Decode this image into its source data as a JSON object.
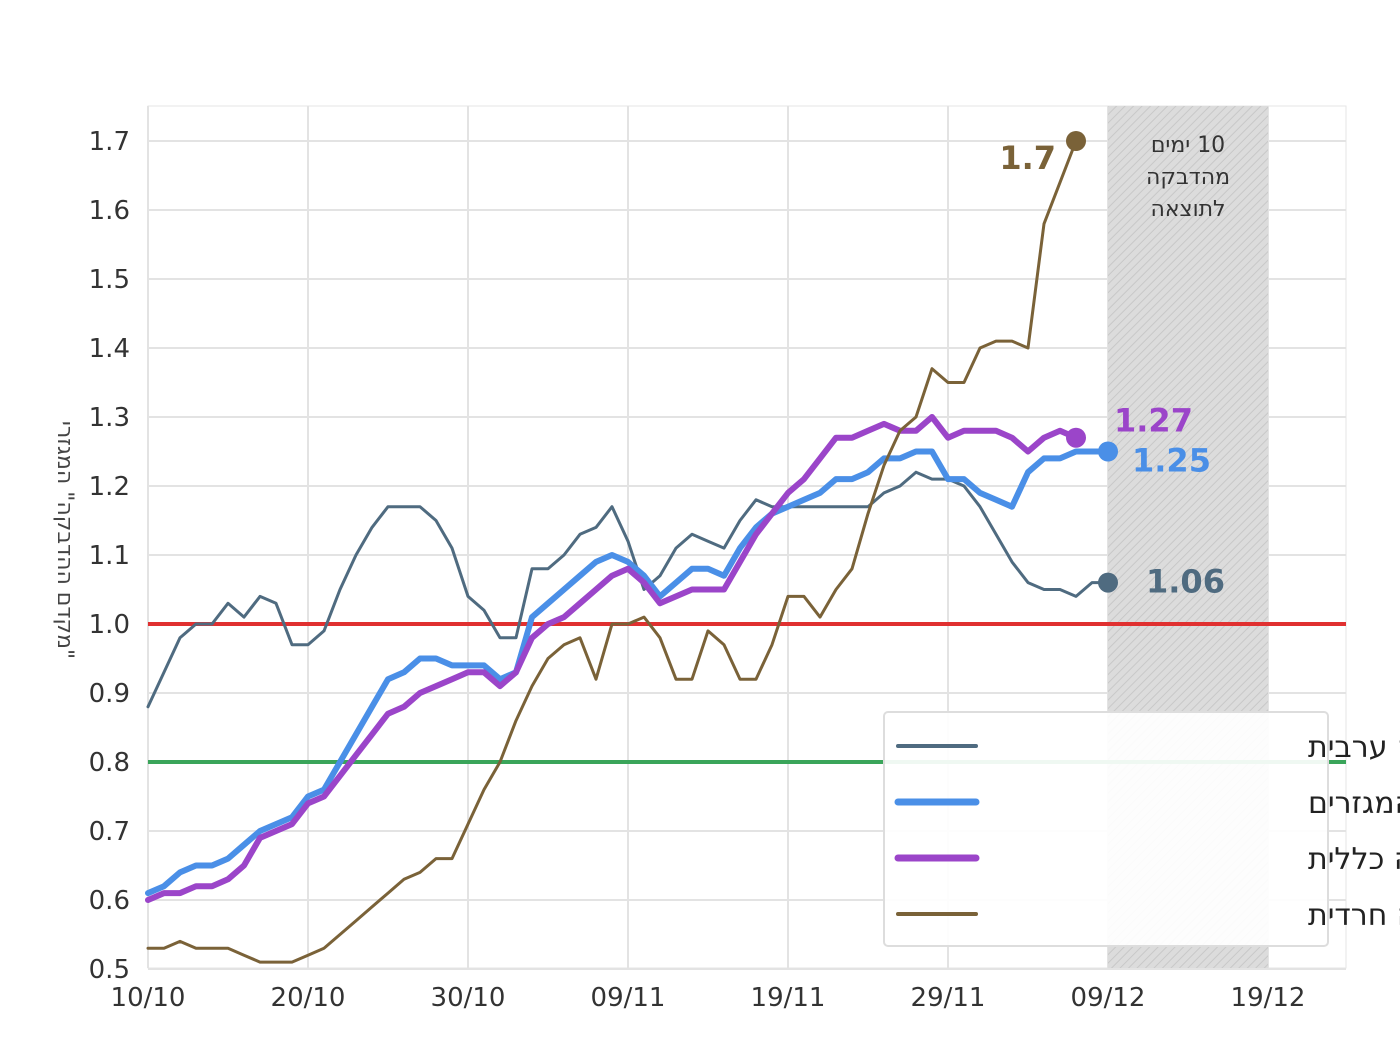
{
  "chart_data": {
    "type": "line",
    "xlabel": "",
    "ylabel": "\"מקדם ההדבקה\" המגזרי",
    "x_ticks": [
      "10/10",
      "20/10",
      "30/10",
      "09/11",
      "19/11",
      "29/11",
      "09/12",
      "19/12"
    ],
    "ylim": [
      0.5,
      1.7
    ],
    "y_ticks": [
      "0.5",
      "0.6",
      "0.7",
      "0.8",
      "0.9",
      "1.0",
      "1.1",
      "1.2",
      "1.3",
      "1.4",
      "1.5",
      "1.6",
      "1.7"
    ],
    "grid": true,
    "legend_position": "bottom-right",
    "x_start": "10/10",
    "annotation": {
      "text_lines": [
        "10 ימים",
        "מהדבקה",
        "לתוצאה"
      ],
      "x_range": [
        60,
        70
      ]
    },
    "reference_lines": [
      {
        "y": 1.0,
        "color": "#e03030"
      },
      {
        "y": 0.8,
        "color": "#3aa55a"
      }
    ],
    "series": [
      {
        "name": "חברה ערבית",
        "color": "#4f6b80",
        "width": 3,
        "end_label": "1.06",
        "points": [
          [
            0,
            0.88
          ],
          [
            1,
            0.93
          ],
          [
            2,
            0.98
          ],
          [
            3,
            1.0
          ],
          [
            4,
            1.0
          ],
          [
            5,
            1.03
          ],
          [
            6,
            1.01
          ],
          [
            7,
            1.04
          ],
          [
            8,
            1.03
          ],
          [
            9,
            0.97
          ],
          [
            10,
            0.97
          ],
          [
            11,
            0.99
          ],
          [
            12,
            1.05
          ],
          [
            13,
            1.1
          ],
          [
            14,
            1.14
          ],
          [
            15,
            1.17
          ],
          [
            16,
            1.17
          ],
          [
            17,
            1.17
          ],
          [
            18,
            1.15
          ],
          [
            19,
            1.11
          ],
          [
            20,
            1.04
          ],
          [
            21,
            1.02
          ],
          [
            22,
            0.98
          ],
          [
            23,
            0.98
          ],
          [
            24,
            1.08
          ],
          [
            25,
            1.08
          ],
          [
            26,
            1.1
          ],
          [
            27,
            1.13
          ],
          [
            28,
            1.14
          ],
          [
            29,
            1.17
          ],
          [
            30,
            1.12
          ],
          [
            31,
            1.05
          ],
          [
            32,
            1.07
          ],
          [
            33,
            1.11
          ],
          [
            34,
            1.13
          ],
          [
            35,
            1.12
          ],
          [
            36,
            1.11
          ],
          [
            37,
            1.15
          ],
          [
            38,
            1.18
          ],
          [
            39,
            1.17
          ],
          [
            40,
            1.17
          ],
          [
            41,
            1.17
          ],
          [
            42,
            1.17
          ],
          [
            43,
            1.17
          ],
          [
            44,
            1.17
          ],
          [
            45,
            1.17
          ],
          [
            46,
            1.19
          ],
          [
            47,
            1.2
          ],
          [
            48,
            1.22
          ],
          [
            49,
            1.21
          ],
          [
            50,
            1.21
          ],
          [
            51,
            1.2
          ],
          [
            52,
            1.17
          ],
          [
            53,
            1.13
          ],
          [
            54,
            1.09
          ],
          [
            55,
            1.06
          ],
          [
            56,
            1.05
          ],
          [
            57,
            1.05
          ],
          [
            58,
            1.04
          ],
          [
            59,
            1.06
          ],
          [
            60,
            1.06
          ]
        ]
      },
      {
        "name": "ארצי - כלל המגזרים",
        "color": "#4a8fe7",
        "width": 6,
        "end_label": "1.25",
        "points": [
          [
            0,
            0.61
          ],
          [
            1,
            0.62
          ],
          [
            2,
            0.64
          ],
          [
            3,
            0.65
          ],
          [
            4,
            0.65
          ],
          [
            5,
            0.66
          ],
          [
            6,
            0.68
          ],
          [
            7,
            0.7
          ],
          [
            8,
            0.71
          ],
          [
            9,
            0.72
          ],
          [
            10,
            0.75
          ],
          [
            11,
            0.76
          ],
          [
            12,
            0.8
          ],
          [
            13,
            0.84
          ],
          [
            14,
            0.88
          ],
          [
            15,
            0.92
          ],
          [
            16,
            0.93
          ],
          [
            17,
            0.95
          ],
          [
            18,
            0.95
          ],
          [
            19,
            0.94
          ],
          [
            20,
            0.94
          ],
          [
            21,
            0.94
          ],
          [
            22,
            0.92
          ],
          [
            23,
            0.93
          ],
          [
            24,
            1.01
          ],
          [
            25,
            1.03
          ],
          [
            26,
            1.05
          ],
          [
            27,
            1.07
          ],
          [
            28,
            1.09
          ],
          [
            29,
            1.1
          ],
          [
            30,
            1.09
          ],
          [
            31,
            1.07
          ],
          [
            32,
            1.04
          ],
          [
            33,
            1.06
          ],
          [
            34,
            1.08
          ],
          [
            35,
            1.08
          ],
          [
            36,
            1.07
          ],
          [
            37,
            1.11
          ],
          [
            38,
            1.14
          ],
          [
            39,
            1.16
          ],
          [
            40,
            1.17
          ],
          [
            41,
            1.18
          ],
          [
            42,
            1.19
          ],
          [
            43,
            1.21
          ],
          [
            44,
            1.21
          ],
          [
            45,
            1.22
          ],
          [
            46,
            1.24
          ],
          [
            47,
            1.24
          ],
          [
            48,
            1.25
          ],
          [
            49,
            1.25
          ],
          [
            50,
            1.21
          ],
          [
            51,
            1.21
          ],
          [
            52,
            1.19
          ],
          [
            53,
            1.18
          ],
          [
            54,
            1.17
          ],
          [
            55,
            1.22
          ],
          [
            56,
            1.24
          ],
          [
            57,
            1.24
          ],
          [
            58,
            1.25
          ],
          [
            59,
            1.25
          ],
          [
            60,
            1.25
          ]
        ]
      },
      {
        "name": "חברה כללית",
        "color": "#9b45c9",
        "width": 6,
        "end_label": "1.27",
        "points": [
          [
            0,
            0.6
          ],
          [
            1,
            0.61
          ],
          [
            2,
            0.61
          ],
          [
            3,
            0.62
          ],
          [
            4,
            0.62
          ],
          [
            5,
            0.63
          ],
          [
            6,
            0.65
          ],
          [
            7,
            0.69
          ],
          [
            8,
            0.7
          ],
          [
            9,
            0.71
          ],
          [
            10,
            0.74
          ],
          [
            11,
            0.75
          ],
          [
            12,
            0.78
          ],
          [
            13,
            0.81
          ],
          [
            14,
            0.84
          ],
          [
            15,
            0.87
          ],
          [
            16,
            0.88
          ],
          [
            17,
            0.9
          ],
          [
            18,
            0.91
          ],
          [
            19,
            0.92
          ],
          [
            20,
            0.93
          ],
          [
            21,
            0.93
          ],
          [
            22,
            0.91
          ],
          [
            23,
            0.93
          ],
          [
            24,
            0.98
          ],
          [
            25,
            1.0
          ],
          [
            26,
            1.01
          ],
          [
            27,
            1.03
          ],
          [
            28,
            1.05
          ],
          [
            29,
            1.07
          ],
          [
            30,
            1.08
          ],
          [
            31,
            1.06
          ],
          [
            32,
            1.03
          ],
          [
            33,
            1.04
          ],
          [
            34,
            1.05
          ],
          [
            35,
            1.05
          ],
          [
            36,
            1.05
          ],
          [
            37,
            1.09
          ],
          [
            38,
            1.13
          ],
          [
            39,
            1.16
          ],
          [
            40,
            1.19
          ],
          [
            41,
            1.21
          ],
          [
            42,
            1.24
          ],
          [
            43,
            1.27
          ],
          [
            44,
            1.27
          ],
          [
            45,
            1.28
          ],
          [
            46,
            1.29
          ],
          [
            47,
            1.28
          ],
          [
            48,
            1.28
          ],
          [
            49,
            1.3
          ],
          [
            50,
            1.27
          ],
          [
            51,
            1.28
          ],
          [
            52,
            1.28
          ],
          [
            53,
            1.28
          ],
          [
            54,
            1.27
          ],
          [
            55,
            1.25
          ],
          [
            56,
            1.27
          ],
          [
            57,
            1.28
          ],
          [
            58,
            1.27
          ]
        ]
      },
      {
        "name": "חברה חרדית",
        "color": "#7a6238",
        "width": 3,
        "end_label": "1.7",
        "points": [
          [
            0,
            0.53
          ],
          [
            1,
            0.53
          ],
          [
            2,
            0.54
          ],
          [
            3,
            0.53
          ],
          [
            4,
            0.53
          ],
          [
            5,
            0.53
          ],
          [
            6,
            0.52
          ],
          [
            7,
            0.51
          ],
          [
            8,
            0.51
          ],
          [
            9,
            0.51
          ],
          [
            10,
            0.52
          ],
          [
            11,
            0.53
          ],
          [
            12,
            0.55
          ],
          [
            13,
            0.57
          ],
          [
            14,
            0.59
          ],
          [
            15,
            0.61
          ],
          [
            16,
            0.63
          ],
          [
            17,
            0.64
          ],
          [
            18,
            0.66
          ],
          [
            19,
            0.66
          ],
          [
            20,
            0.71
          ],
          [
            21,
            0.76
          ],
          [
            22,
            0.8
          ],
          [
            23,
            0.86
          ],
          [
            24,
            0.91
          ],
          [
            25,
            0.95
          ],
          [
            26,
            0.97
          ],
          [
            27,
            0.98
          ],
          [
            28,
            0.92
          ],
          [
            29,
            1.0
          ],
          [
            30,
            1.0
          ],
          [
            31,
            1.01
          ],
          [
            32,
            0.98
          ],
          [
            33,
            0.92
          ],
          [
            34,
            0.92
          ],
          [
            35,
            0.99
          ],
          [
            36,
            0.97
          ],
          [
            37,
            0.92
          ],
          [
            38,
            0.92
          ],
          [
            39,
            0.97
          ],
          [
            40,
            1.04
          ],
          [
            41,
            1.04
          ],
          [
            42,
            1.01
          ],
          [
            43,
            1.05
          ],
          [
            44,
            1.08
          ],
          [
            45,
            1.16
          ],
          [
            46,
            1.23
          ],
          [
            47,
            1.28
          ],
          [
            48,
            1.3
          ],
          [
            49,
            1.37
          ],
          [
            50,
            1.35
          ],
          [
            51,
            1.35
          ],
          [
            52,
            1.4
          ],
          [
            53,
            1.41
          ],
          [
            54,
            1.41
          ],
          [
            55,
            1.4
          ],
          [
            56,
            1.58
          ],
          [
            57,
            1.64
          ],
          [
            58,
            1.7
          ]
        ]
      }
    ]
  }
}
